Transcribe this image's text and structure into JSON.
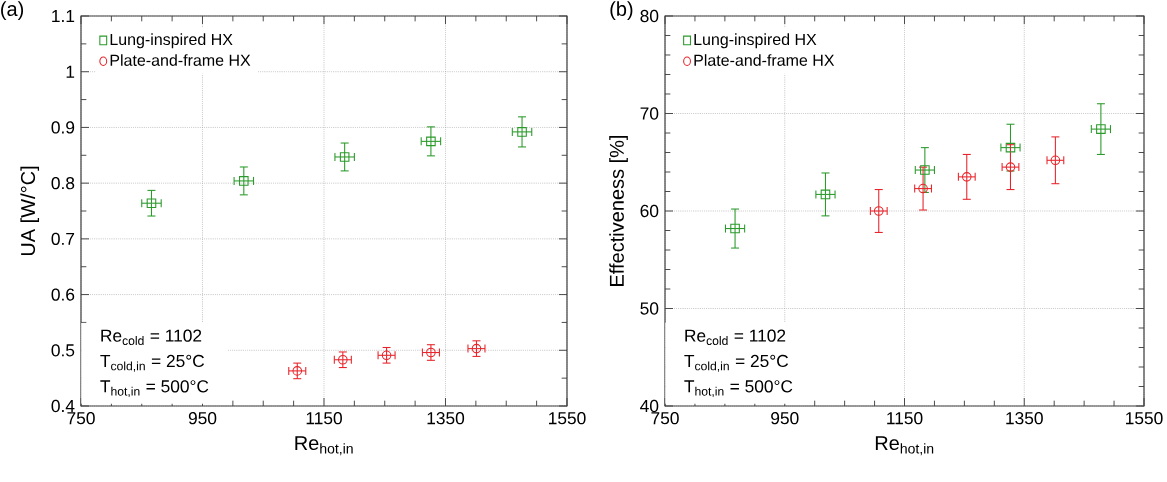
{
  "chart_data": [
    {
      "type": "scatter",
      "title": "(a)",
      "xlabel": "Re$_{hot,in}$",
      "ylabel": "UA [W/°C]",
      "xlim": [
        750,
        1550
      ],
      "ylim": [
        0.4,
        1.1
      ],
      "xticks": [
        750,
        950,
        1150,
        1350,
        1550
      ],
      "yticks": [
        0.4,
        0.5,
        0.6,
        0.7,
        0.8,
        0.9,
        1,
        1.1
      ],
      "grid": true,
      "legend": "top left",
      "annotations": [
        "Re$_{cold}$ = 1102",
        "T$_{cold,in}$ = 25°C",
        "T$_{hot,in}$ = 500°C"
      ],
      "series": [
        {
          "name": "Lung-inspired HX",
          "color": "#2a9a2a",
          "marker": "square",
          "x": [
            866,
            1018,
            1184,
            1326,
            1476
          ],
          "values": [
            0.764,
            0.804,
            0.847,
            0.875,
            0.892
          ],
          "errors": [
            0.023,
            0.025,
            0.025,
            0.026,
            0.027
          ],
          "xerrors": [
            16,
            16,
            16,
            16,
            16
          ]
        },
        {
          "name": "Plate-and-frame HX",
          "color": "#e8242a",
          "marker": "circle",
          "x": [
            1106,
            1181,
            1253,
            1326,
            1401
          ],
          "values": [
            0.463,
            0.483,
            0.491,
            0.496,
            0.503
          ],
          "errors": [
            0.014,
            0.014,
            0.014,
            0.014,
            0.014
          ],
          "xerrors": [
            14,
            14,
            14,
            14,
            14
          ]
        }
      ]
    },
    {
      "type": "scatter",
      "title": "(b)",
      "xlabel": "Re$_{hot,in}$",
      "ylabel": "Effectiveness [%]",
      "xlim": [
        750,
        1550
      ],
      "ylim": [
        40,
        80
      ],
      "xticks": [
        750,
        950,
        1150,
        1350,
        1550
      ],
      "yticks": [
        40,
        50,
        60,
        70,
        80
      ],
      "grid": true,
      "legend": "top left",
      "annotations": [
        "Re$_{cold}$ = 1102",
        "T$_{cold,in}$ = 25°C",
        "T$_{hot,in}$ = 500°C"
      ],
      "series": [
        {
          "name": "Lung-inspired HX",
          "color": "#2a9a2a",
          "marker": "square",
          "x": [
            867,
            1018,
            1184,
            1327,
            1478
          ],
          "values": [
            58.2,
            61.7,
            64.2,
            66.5,
            68.4
          ],
          "errors": [
            2.0,
            2.2,
            2.3,
            2.4,
            2.6
          ],
          "xerrors": [
            16,
            16,
            16,
            16,
            16
          ]
        },
        {
          "name": "Plate-and-frame HX",
          "color": "#e8242a",
          "marker": "circle",
          "x": [
            1107,
            1181,
            1254,
            1327,
            1402
          ],
          "values": [
            60.0,
            62.3,
            63.5,
            64.5,
            65.2
          ],
          "errors": [
            2.2,
            2.2,
            2.3,
            2.3,
            2.4
          ],
          "xerrors": [
            14,
            14,
            14,
            14,
            14
          ]
        }
      ]
    }
  ]
}
